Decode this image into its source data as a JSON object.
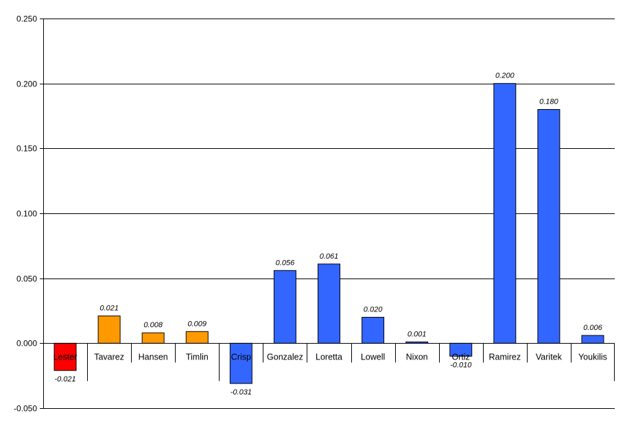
{
  "chart_data": {
    "type": "bar",
    "title": "",
    "xlabel": "",
    "ylabel": "",
    "ylim": [
      -0.05,
      0.25
    ],
    "yticks": [
      "0.250",
      "0.200",
      "0.150",
      "0.100",
      "0.050",
      "0.000",
      "-0.050"
    ],
    "ytick_values": [
      0.25,
      0.2,
      0.15,
      0.1,
      0.05,
      0.0,
      -0.05
    ],
    "grid": true,
    "legend": "none",
    "categories": [
      "Lester",
      "Tavarez",
      "Hansen",
      "Timlin",
      "Crisp",
      "Gonzalez",
      "Loretta",
      "Lowell",
      "Nixon",
      "Ortiz",
      "Ramirez",
      "Varitek",
      "Youkilis"
    ],
    "values": [
      -0.021,
      0.021,
      0.008,
      0.009,
      -0.031,
      0.056,
      0.061,
      0.02,
      0.001,
      -0.01,
      0.2,
      0.18,
      0.006
    ],
    "value_labels": [
      "-0.021",
      "0.021",
      "0.008",
      "0.009",
      "-0.031",
      "0.056",
      "0.061",
      "0.020",
      "0.001",
      "-0.010",
      "0.200",
      "0.180",
      "0.006"
    ],
    "bar_colors": [
      "#ff0000",
      "#ff9900",
      "#ff9900",
      "#ff9900",
      "#3366ff",
      "#3366ff",
      "#3366ff",
      "#3366ff",
      "#3366ff",
      "#3366ff",
      "#3366ff",
      "#3366ff",
      "#3366ff"
    ],
    "group_breaks_after": [
      0,
      3
    ]
  }
}
